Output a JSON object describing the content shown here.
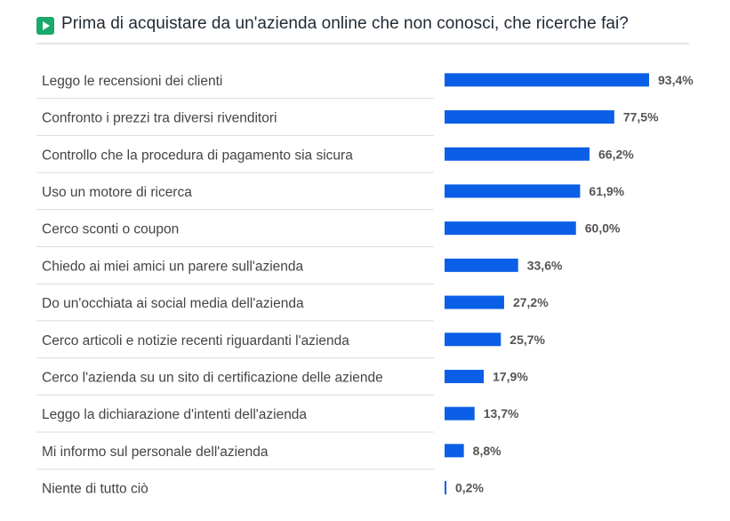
{
  "header": {
    "title": "Prima di acquistare da un'azienda online che non conosci, che ricerche fai?",
    "icon": "play-icon",
    "icon_color": "#1aa86b"
  },
  "chart_data": {
    "type": "bar",
    "orientation": "horizontal",
    "title": "Prima di acquistare da un'azienda online che non conosci, che ricerche fai?",
    "categories": [
      "Leggo le recensioni dei clienti",
      "Confronto i prezzi tra diversi rivenditori",
      "Controllo che la procedura di pagamento sia sicura",
      "Uso un motore di ricerca",
      "Cerco sconti o coupon",
      "Chiedo ai miei amici un parere sull'azienda",
      "Do un'occhiata ai social media dell'azienda",
      "Cerco articoli e notizie recenti riguardanti l'azienda",
      "Cerco l'azienda su un sito di certificazione delle aziende",
      "Leggo la dichiarazione d'intenti dell'azienda",
      "Mi informo sul personale dell'azienda",
      "Niente di tutto ciò"
    ],
    "values": [
      93.4,
      77.5,
      66.2,
      61.9,
      60.0,
      33.6,
      27.2,
      25.7,
      17.9,
      13.7,
      8.8,
      0.2
    ],
    "value_labels": [
      "93,4%",
      "77,5%",
      "66,2%",
      "61,9%",
      "60,0%",
      "33,6%",
      "27,2%",
      "25,7%",
      "17,9%",
      "13,7%",
      "8,8%",
      "0,2%"
    ],
    "xlim": [
      0,
      100
    ],
    "bar_color": "#0b5fe6",
    "label_color": "#444444",
    "value_label_color": "#555555",
    "divider_color": "#dcdcdc",
    "grid": false,
    "legend": "none"
  }
}
